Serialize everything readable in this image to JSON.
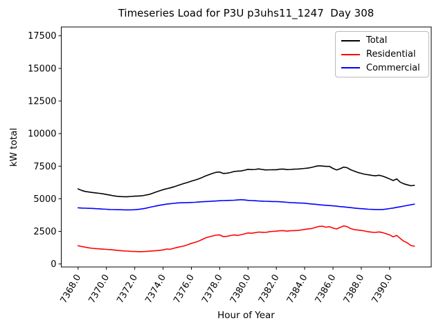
{
  "chart_data": {
    "type": "line",
    "title": "Timeseries Load for P3U p3uhs11_1247  Day 308",
    "xlabel": "Hour of Year",
    "ylabel": "kW total",
    "grid": false,
    "legend_position": "upper right",
    "xlim": [
      7366.81,
      7392.94
    ],
    "ylim": [
      -230,
      18175
    ],
    "x_ticks": [
      {
        "value": 7368,
        "label": "7368.0"
      },
      {
        "value": 7370,
        "label": "7370.0"
      },
      {
        "value": 7372,
        "label": "7372.0"
      },
      {
        "value": 7374,
        "label": "7374.0"
      },
      {
        "value": 7376,
        "label": "7376.0"
      },
      {
        "value": 7378,
        "label": "7378.0"
      },
      {
        "value": 7380,
        "label": "7380.0"
      },
      {
        "value": 7382,
        "label": "7382.0"
      },
      {
        "value": 7384,
        "label": "7384.0"
      },
      {
        "value": 7386,
        "label": "7386.0"
      },
      {
        "value": 7388,
        "label": "7388.0"
      },
      {
        "value": 7390,
        "label": "7390.0"
      }
    ],
    "y_ticks": [
      {
        "value": 0,
        "label": "0"
      },
      {
        "value": 2500,
        "label": "2500"
      },
      {
        "value": 5000,
        "label": "5000"
      },
      {
        "value": 7500,
        "label": "7500"
      },
      {
        "value": 10000,
        "label": "10000"
      },
      {
        "value": 12500,
        "label": "12500"
      },
      {
        "value": 15000,
        "label": "15000"
      },
      {
        "value": 17500,
        "label": "17500"
      }
    ],
    "x": [
      7368.0,
      7368.25,
      7368.5,
      7368.75,
      7369.0,
      7369.25,
      7369.5,
      7369.75,
      7370.0,
      7370.25,
      7370.5,
      7370.75,
      7371.0,
      7371.25,
      7371.5,
      7371.75,
      7372.0,
      7372.25,
      7372.5,
      7372.75,
      7373.0,
      7373.25,
      7373.5,
      7373.75,
      7374.0,
      7374.25,
      7374.5,
      7374.75,
      7375.0,
      7375.25,
      7375.5,
      7375.75,
      7376.0,
      7376.25,
      7376.5,
      7376.75,
      7377.0,
      7377.25,
      7377.5,
      7377.75,
      7378.0,
      7378.25,
      7378.5,
      7378.75,
      7379.0,
      7379.25,
      7379.5,
      7379.75,
      7380.0,
      7380.25,
      7380.5,
      7380.75,
      7381.0,
      7381.25,
      7381.5,
      7381.75,
      7382.0,
      7382.25,
      7382.5,
      7382.75,
      7383.0,
      7383.25,
      7383.5,
      7383.75,
      7384.0,
      7384.25,
      7384.5,
      7384.75,
      7385.0,
      7385.25,
      7385.5,
      7385.75,
      7386.0,
      7386.25,
      7386.5,
      7386.75,
      7387.0,
      7387.25,
      7387.5,
      7387.75,
      7388.0,
      7388.25,
      7388.5,
      7388.75,
      7389.0,
      7389.25,
      7389.5,
      7389.75,
      7390.0,
      7390.25,
      7390.5,
      7390.75,
      7391.0,
      7391.25,
      7391.5,
      7391.75
    ],
    "series": [
      {
        "name": "Total",
        "color": "#000000",
        "values": [
          5760,
          5640,
          5560,
          5520,
          5480,
          5450,
          5420,
          5380,
          5330,
          5280,
          5230,
          5190,
          5170,
          5160,
          5160,
          5180,
          5200,
          5210,
          5230,
          5280,
          5330,
          5420,
          5520,
          5610,
          5700,
          5770,
          5830,
          5910,
          6000,
          6090,
          6180,
          6260,
          6350,
          6430,
          6520,
          6630,
          6750,
          6850,
          6950,
          7030,
          7050,
          6940,
          6960,
          7010,
          7090,
          7120,
          7130,
          7190,
          7260,
          7240,
          7250,
          7290,
          7250,
          7210,
          7220,
          7230,
          7230,
          7270,
          7280,
          7240,
          7250,
          7270,
          7280,
          7300,
          7330,
          7360,
          7410,
          7480,
          7530,
          7510,
          7480,
          7490,
          7330,
          7210,
          7300,
          7430,
          7380,
          7230,
          7120,
          7020,
          6950,
          6880,
          6840,
          6790,
          6760,
          6810,
          6740,
          6640,
          6520,
          6400,
          6520,
          6280,
          6150,
          6070,
          6000,
          6030
        ]
      },
      {
        "name": "Residential",
        "color": "#ff0000",
        "values": [
          1400,
          1340,
          1290,
          1240,
          1200,
          1180,
          1160,
          1140,
          1120,
          1100,
          1080,
          1050,
          1020,
          1000,
          990,
          970,
          960,
          950,
          950,
          960,
          980,
          1000,
          1020,
          1050,
          1080,
          1150,
          1130,
          1200,
          1270,
          1330,
          1390,
          1480,
          1580,
          1660,
          1750,
          1870,
          2000,
          2080,
          2150,
          2210,
          2230,
          2100,
          2120,
          2180,
          2230,
          2190,
          2240,
          2310,
          2380,
          2360,
          2400,
          2450,
          2430,
          2420,
          2470,
          2500,
          2520,
          2550,
          2560,
          2520,
          2550,
          2560,
          2570,
          2610,
          2650,
          2690,
          2720,
          2800,
          2880,
          2900,
          2820,
          2860,
          2760,
          2680,
          2800,
          2920,
          2860,
          2720,
          2640,
          2600,
          2570,
          2530,
          2470,
          2440,
          2420,
          2460,
          2410,
          2320,
          2230,
          2080,
          2190,
          1960,
          1750,
          1620,
          1420,
          1360
        ]
      },
      {
        "name": "Commercial",
        "color": "#0000ff",
        "values": [
          4310,
          4290,
          4280,
          4270,
          4260,
          4240,
          4230,
          4210,
          4200,
          4180,
          4170,
          4160,
          4160,
          4150,
          4150,
          4150,
          4160,
          4190,
          4220,
          4270,
          4330,
          4390,
          4450,
          4500,
          4550,
          4590,
          4620,
          4650,
          4680,
          4690,
          4700,
          4710,
          4720,
          4730,
          4750,
          4770,
          4790,
          4800,
          4820,
          4830,
          4850,
          4860,
          4870,
          4880,
          4890,
          4910,
          4930,
          4910,
          4880,
          4860,
          4850,
          4830,
          4820,
          4810,
          4800,
          4790,
          4790,
          4770,
          4750,
          4730,
          4710,
          4700,
          4680,
          4670,
          4660,
          4630,
          4600,
          4580,
          4550,
          4520,
          4500,
          4480,
          4460,
          4430,
          4400,
          4380,
          4350,
          4320,
          4290,
          4260,
          4240,
          4220,
          4200,
          4190,
          4180,
          4180,
          4180,
          4210,
          4250,
          4290,
          4340,
          4390,
          4440,
          4490,
          4540,
          4590
        ]
      }
    ]
  }
}
